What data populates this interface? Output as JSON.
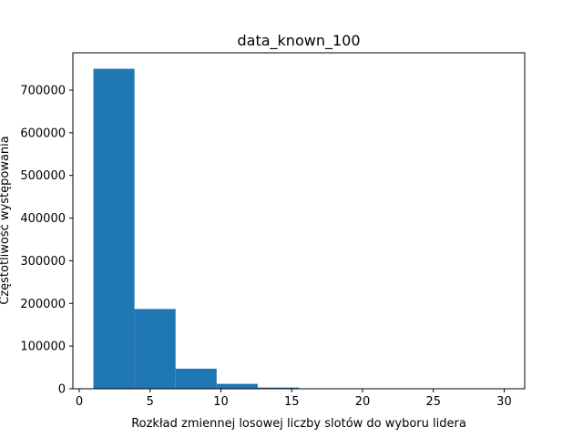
{
  "chart_data": {
    "type": "bar",
    "title": "data_known_100",
    "xlabel": "Rozkład zmiennej losowej liczby slotów do wyboru lidera",
    "ylabel": "Częstotliwość występowania",
    "xlim": [
      -0.45,
      31.45
    ],
    "ylim": [
      0,
      787500
    ],
    "xticks": [
      0,
      5,
      10,
      15,
      20,
      25,
      30
    ],
    "yticks": [
      0,
      100000,
      200000,
      300000,
      400000,
      500000,
      600000,
      700000
    ],
    "grid": false,
    "bar_color": "#1f77b4",
    "bins": [
      {
        "x0": 1.0,
        "x1": 3.9,
        "value": 750000
      },
      {
        "x0": 3.9,
        "x1": 6.8,
        "value": 187000
      },
      {
        "x0": 6.8,
        "x1": 9.7,
        "value": 47000
      },
      {
        "x0": 9.7,
        "x1": 12.6,
        "value": 11500
      },
      {
        "x0": 12.6,
        "x1": 15.5,
        "value": 2800
      },
      {
        "x0": 15.5,
        "x1": 18.4,
        "value": 700
      },
      {
        "x0": 18.4,
        "x1": 21.3,
        "value": 170
      },
      {
        "x0": 21.3,
        "x1": 24.2,
        "value": 40
      },
      {
        "x0": 24.2,
        "x1": 27.1,
        "value": 10
      },
      {
        "x0": 27.1,
        "x1": 30.0,
        "value": 2
      }
    ]
  }
}
